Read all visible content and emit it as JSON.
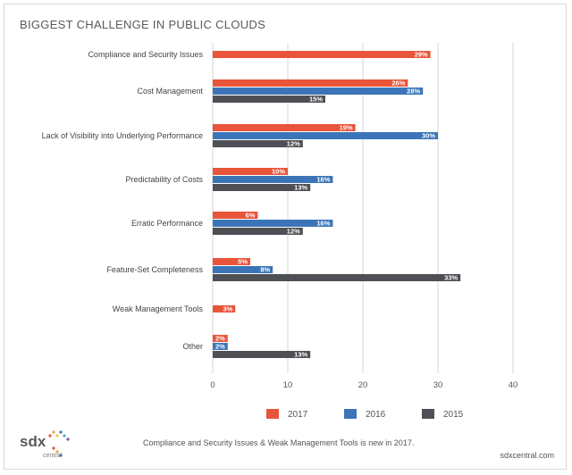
{
  "header": {
    "title": "BIGGEST CHALLENGE IN PUBLIC CLOUDS"
  },
  "footer": {
    "note": "Compliance and Security Issues & Weak Management Tools is new in 2017.",
    "site": "sdxcentral.com",
    "logo_word": "sdx",
    "logo_sub": "central"
  },
  "colors": {
    "2017": "#e8553a",
    "2016": "#3b75b8",
    "2015": "#4e5055",
    "grid": "#d6d6d6"
  },
  "chart_data": {
    "type": "bar",
    "orientation": "horizontal",
    "title": "BIGGEST CHALLENGE IN PUBLIC CLOUDS",
    "xlim": [
      0,
      40
    ],
    "ticks": [
      0,
      10,
      20,
      30,
      40
    ],
    "grid": true,
    "legend_position": "bottom",
    "unit": "%",
    "categories": [
      "Compliance and Security Issues",
      "Cost Management",
      "Lack of Visibility into Underlying Performance",
      "Predictability of Costs",
      "Erratic Performance",
      "Feature-Set Completeness",
      "Weak Management Tools",
      "Other"
    ],
    "series": [
      {
        "name": "2017",
        "values": [
          29,
          26,
          19,
          10,
          6,
          5,
          3,
          2
        ]
      },
      {
        "name": "2016",
        "values": [
          null,
          28,
          30,
          16,
          16,
          8,
          null,
          2
        ]
      },
      {
        "name": "2015",
        "values": [
          null,
          15,
          12,
          13,
          12,
          33,
          null,
          13
        ]
      }
    ]
  }
}
